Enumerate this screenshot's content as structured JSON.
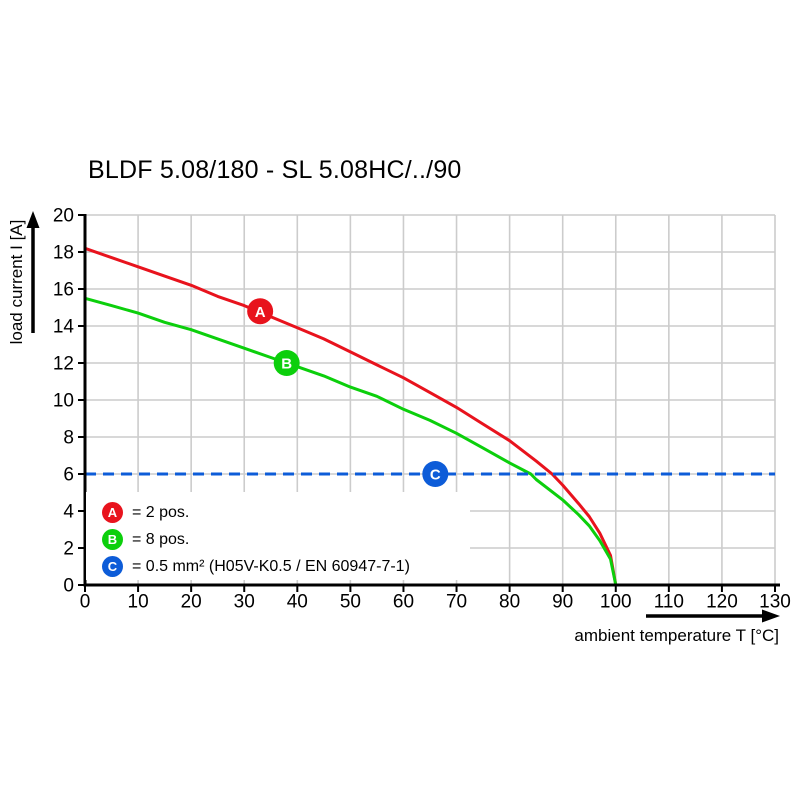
{
  "title": "BLDF 5.08/180 - SL 5.08HC/../90",
  "chart_data": {
    "type": "line",
    "title": "BLDF 5.08/180 - SL 5.08HC/../90",
    "xlabel": "ambient temperature T [°C]",
    "ylabel": "load current I [A]",
    "xlim": [
      0,
      130
    ],
    "ylim": [
      0,
      20
    ],
    "x_ticks": [
      0,
      10,
      20,
      30,
      40,
      50,
      60,
      70,
      80,
      90,
      100,
      110,
      120,
      130
    ],
    "y_ticks": [
      0,
      2,
      4,
      6,
      8,
      10,
      12,
      14,
      16,
      18,
      20
    ],
    "grid": true,
    "colors": {
      "grid": "#cccccc",
      "axis": "#000000",
      "background": "#ffffff"
    },
    "series": [
      {
        "name": "A",
        "description": "2 pos.",
        "color": "#e8131d",
        "points": [
          [
            0,
            18.2
          ],
          [
            5,
            17.7
          ],
          [
            10,
            17.2
          ],
          [
            15,
            16.7
          ],
          [
            20,
            16.2
          ],
          [
            25,
            15.6
          ],
          [
            30,
            15.1
          ],
          [
            35,
            14.5
          ],
          [
            40,
            13.9
          ],
          [
            45,
            13.3
          ],
          [
            50,
            12.6
          ],
          [
            55,
            11.9
          ],
          [
            60,
            11.2
          ],
          [
            65,
            10.4
          ],
          [
            70,
            9.6
          ],
          [
            75,
            8.7
          ],
          [
            80,
            7.8
          ],
          [
            85,
            6.7
          ],
          [
            88,
            6.0
          ],
          [
            90,
            5.4
          ],
          [
            93,
            4.4
          ],
          [
            95,
            3.7
          ],
          [
            97,
            2.8
          ],
          [
            99,
            1.6
          ],
          [
            100,
            0
          ]
        ],
        "marker": {
          "label": "A",
          "x": 33,
          "y": 14.8
        }
      },
      {
        "name": "B",
        "description": "8 pos.",
        "color": "#0ccf0c",
        "points": [
          [
            0,
            15.5
          ],
          [
            5,
            15.1
          ],
          [
            10,
            14.7
          ],
          [
            15,
            14.2
          ],
          [
            20,
            13.8
          ],
          [
            25,
            13.3
          ],
          [
            30,
            12.8
          ],
          [
            35,
            12.3
          ],
          [
            40,
            11.8
          ],
          [
            45,
            11.3
          ],
          [
            50,
            10.7
          ],
          [
            55,
            10.2
          ],
          [
            60,
            9.5
          ],
          [
            65,
            8.9
          ],
          [
            70,
            8.2
          ],
          [
            75,
            7.4
          ],
          [
            80,
            6.6
          ],
          [
            84,
            6.0
          ],
          [
            85,
            5.7
          ],
          [
            90,
            4.6
          ],
          [
            93,
            3.8
          ],
          [
            95,
            3.2
          ],
          [
            97,
            2.4
          ],
          [
            99,
            1.4
          ],
          [
            100,
            0
          ]
        ],
        "marker": {
          "label": "B",
          "x": 38,
          "y": 12.0
        }
      },
      {
        "name": "C",
        "description": "0.5 mm² (H05V-K0.5 / EN 60947-7-1)",
        "color": "#0d5cd8",
        "style": "dashed",
        "y_const": 6,
        "x_range": [
          0,
          130
        ],
        "marker": {
          "label": "C",
          "x": 66,
          "y": 6.0
        }
      }
    ],
    "legend": {
      "position": "bottom-left",
      "items": [
        {
          "symbol": "A",
          "color": "#e8131d",
          "label": "= 2 pos."
        },
        {
          "symbol": "B",
          "color": "#0ccf0c",
          "label": "= 8 pos."
        },
        {
          "symbol": "C",
          "color": "#0d5cd8",
          "label": "= 0.5 mm² (H05V-K0.5 / EN 60947-7-1)"
        }
      ]
    }
  }
}
